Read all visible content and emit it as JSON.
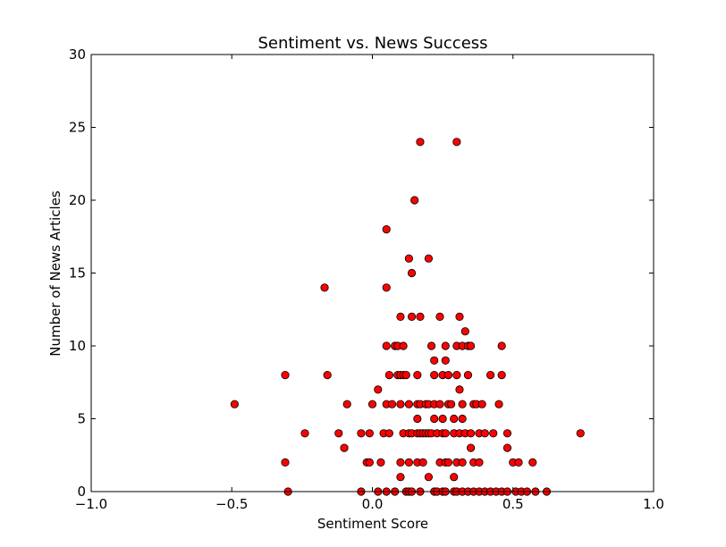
{
  "chart_data": {
    "type": "scatter",
    "title": "Sentiment vs. News Success",
    "xlabel": "Sentiment Score",
    "ylabel": "Number of News Articles",
    "xlim": [
      -1.0,
      1.0
    ],
    "ylim": [
      0,
      30
    ],
    "x_ticks": [
      -1.0,
      -0.5,
      0.0,
      0.5,
      1.0
    ],
    "x_tick_labels": [
      "−1.0",
      "−0.5",
      "0.0",
      "0.5",
      "1.0"
    ],
    "y_ticks": [
      0,
      5,
      10,
      15,
      20,
      25,
      30
    ],
    "y_tick_labels": [
      "0",
      "5",
      "10",
      "15",
      "20",
      "25",
      "30"
    ],
    "grid": false,
    "legend": false,
    "marker_color": "#ff0000",
    "marker_edge": "#000000",
    "points": [
      [
        0.17,
        24
      ],
      [
        0.3,
        24
      ],
      [
        0.15,
        20
      ],
      [
        0.05,
        18
      ],
      [
        0.13,
        16
      ],
      [
        0.2,
        16
      ],
      [
        0.14,
        15
      ],
      [
        -0.17,
        14
      ],
      [
        0.05,
        14
      ],
      [
        0.1,
        12
      ],
      [
        0.14,
        12
      ],
      [
        0.17,
        12
      ],
      [
        0.24,
        12
      ],
      [
        0.31,
        12
      ],
      [
        0.33,
        11
      ],
      [
        0.05,
        10
      ],
      [
        0.08,
        10
      ],
      [
        0.09,
        10
      ],
      [
        0.11,
        10
      ],
      [
        0.21,
        10
      ],
      [
        0.26,
        10
      ],
      [
        0.3,
        10
      ],
      [
        0.32,
        10
      ],
      [
        0.34,
        10
      ],
      [
        0.35,
        10
      ],
      [
        0.46,
        10
      ],
      [
        0.22,
        9
      ],
      [
        0.26,
        9
      ],
      [
        -0.31,
        8
      ],
      [
        -0.16,
        8
      ],
      [
        0.06,
        8
      ],
      [
        0.09,
        8
      ],
      [
        0.1,
        8
      ],
      [
        0.11,
        8
      ],
      [
        0.12,
        8
      ],
      [
        0.16,
        8
      ],
      [
        0.22,
        8
      ],
      [
        0.25,
        8
      ],
      [
        0.27,
        8
      ],
      [
        0.3,
        8
      ],
      [
        0.34,
        8
      ],
      [
        0.42,
        8
      ],
      [
        0.46,
        8
      ],
      [
        0.02,
        7
      ],
      [
        0.31,
        7
      ],
      [
        -0.49,
        6
      ],
      [
        -0.09,
        6
      ],
      [
        0.0,
        6
      ],
      [
        0.05,
        6
      ],
      [
        0.07,
        6
      ],
      [
        0.1,
        6
      ],
      [
        0.13,
        6
      ],
      [
        0.16,
        6
      ],
      [
        0.17,
        6
      ],
      [
        0.19,
        6
      ],
      [
        0.2,
        6
      ],
      [
        0.22,
        6
      ],
      [
        0.24,
        6
      ],
      [
        0.27,
        6
      ],
      [
        0.28,
        6
      ],
      [
        0.32,
        6
      ],
      [
        0.36,
        6
      ],
      [
        0.37,
        6
      ],
      [
        0.39,
        6
      ],
      [
        0.45,
        6
      ],
      [
        0.16,
        5
      ],
      [
        0.22,
        5
      ],
      [
        0.25,
        5
      ],
      [
        0.29,
        5
      ],
      [
        0.32,
        5
      ],
      [
        -0.24,
        4
      ],
      [
        -0.12,
        4
      ],
      [
        -0.04,
        4
      ],
      [
        -0.01,
        4
      ],
      [
        0.04,
        4
      ],
      [
        0.06,
        4
      ],
      [
        0.11,
        4
      ],
      [
        0.13,
        4
      ],
      [
        0.14,
        4
      ],
      [
        0.16,
        4
      ],
      [
        0.17,
        4
      ],
      [
        0.18,
        4
      ],
      [
        0.19,
        4
      ],
      [
        0.2,
        4
      ],
      [
        0.21,
        4
      ],
      [
        0.23,
        4
      ],
      [
        0.25,
        4
      ],
      [
        0.26,
        4
      ],
      [
        0.29,
        4
      ],
      [
        0.31,
        4
      ],
      [
        0.33,
        4
      ],
      [
        0.35,
        4
      ],
      [
        0.38,
        4
      ],
      [
        0.4,
        4
      ],
      [
        0.43,
        4
      ],
      [
        0.48,
        4
      ],
      [
        0.74,
        4
      ],
      [
        -0.1,
        3
      ],
      [
        0.35,
        3
      ],
      [
        0.48,
        3
      ],
      [
        -0.31,
        2
      ],
      [
        -0.02,
        2
      ],
      [
        -0.01,
        2
      ],
      [
        0.03,
        2
      ],
      [
        0.1,
        2
      ],
      [
        0.13,
        2
      ],
      [
        0.16,
        2
      ],
      [
        0.18,
        2
      ],
      [
        0.24,
        2
      ],
      [
        0.26,
        2
      ],
      [
        0.27,
        2
      ],
      [
        0.3,
        2
      ],
      [
        0.32,
        2
      ],
      [
        0.36,
        2
      ],
      [
        0.38,
        2
      ],
      [
        0.5,
        2
      ],
      [
        0.52,
        2
      ],
      [
        0.57,
        2
      ],
      [
        0.1,
        1
      ],
      [
        0.2,
        1
      ],
      [
        0.29,
        1
      ],
      [
        -0.3,
        0
      ],
      [
        -0.04,
        0
      ],
      [
        0.02,
        0
      ],
      [
        0.05,
        0
      ],
      [
        0.08,
        0
      ],
      [
        0.12,
        0
      ],
      [
        0.13,
        0
      ],
      [
        0.14,
        0
      ],
      [
        0.17,
        0
      ],
      [
        0.22,
        0
      ],
      [
        0.23,
        0
      ],
      [
        0.25,
        0
      ],
      [
        0.26,
        0
      ],
      [
        0.29,
        0
      ],
      [
        0.3,
        0
      ],
      [
        0.32,
        0
      ],
      [
        0.34,
        0
      ],
      [
        0.36,
        0
      ],
      [
        0.38,
        0
      ],
      [
        0.4,
        0
      ],
      [
        0.42,
        0
      ],
      [
        0.44,
        0
      ],
      [
        0.46,
        0
      ],
      [
        0.48,
        0
      ],
      [
        0.51,
        0
      ],
      [
        0.53,
        0
      ],
      [
        0.55,
        0
      ],
      [
        0.58,
        0
      ],
      [
        0.62,
        0
      ]
    ]
  }
}
